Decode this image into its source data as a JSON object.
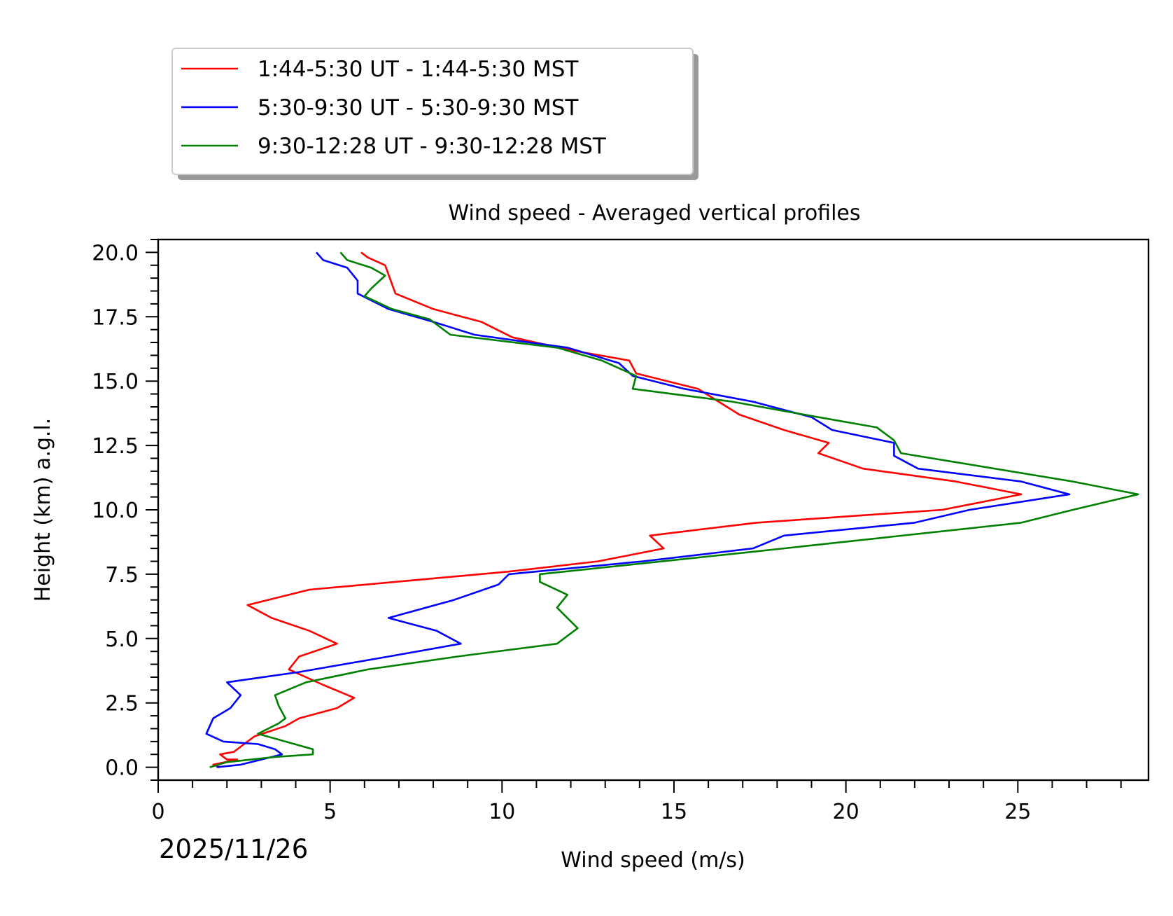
{
  "chart_data": {
    "type": "line",
    "title": "Wind speed - Averaged vertical profiles",
    "xlabel": "Wind speed (m/s)",
    "ylabel": "Height (km) a.g.l.",
    "date_label": "2025/11/26",
    "xlim": [
      0,
      28.8
    ],
    "ylim": [
      -0.5,
      20.5
    ],
    "x_major_ticks": [
      0,
      5,
      10,
      15,
      20,
      25
    ],
    "x_tick_labels": [
      "0",
      "5",
      "10",
      "15",
      "20",
      "25"
    ],
    "y_major_ticks": [
      0,
      2.5,
      5,
      7.5,
      10,
      12.5,
      15,
      17.5,
      20
    ],
    "y_tick_labels": [
      "0.0",
      "2.5",
      "5.0",
      "7.5",
      "10.0",
      "12.5",
      "15.0",
      "17.5",
      "20.0"
    ],
    "x_minor_step": 1,
    "y_minor_step": 0.5,
    "grid": false,
    "legend_position": "above-left",
    "series": [
      {
        "name": "1:44-5:30 UT - 1:44-5:30 MST",
        "color": "#ff0000",
        "points": [
          [
            5.9,
            20.0
          ],
          [
            6.1,
            19.8
          ],
          [
            6.6,
            19.5
          ],
          [
            6.9,
            18.4
          ],
          [
            8.0,
            17.8
          ],
          [
            9.4,
            17.3
          ],
          [
            10.3,
            16.7
          ],
          [
            12.0,
            16.2
          ],
          [
            13.7,
            15.8
          ],
          [
            13.9,
            15.3
          ],
          [
            15.7,
            14.7
          ],
          [
            16.3,
            14.2
          ],
          [
            16.9,
            13.7
          ],
          [
            18.2,
            13.1
          ],
          [
            19.5,
            12.6
          ],
          [
            19.2,
            12.2
          ],
          [
            20.5,
            11.6
          ],
          [
            23.2,
            11.1
          ],
          [
            25.1,
            10.6
          ],
          [
            22.8,
            10.0
          ],
          [
            17.4,
            9.5
          ],
          [
            14.3,
            9.0
          ],
          [
            14.7,
            8.5
          ],
          [
            12.8,
            8.0
          ],
          [
            10.2,
            7.6
          ],
          [
            4.4,
            6.9
          ],
          [
            2.6,
            6.3
          ],
          [
            3.3,
            5.8
          ],
          [
            4.4,
            5.3
          ],
          [
            5.2,
            4.8
          ],
          [
            4.1,
            4.3
          ],
          [
            3.8,
            3.8
          ],
          [
            4.8,
            3.2
          ],
          [
            5.7,
            2.7
          ],
          [
            5.2,
            2.3
          ],
          [
            4.1,
            1.9
          ],
          [
            3.7,
            1.6
          ],
          [
            2.8,
            1.2
          ],
          [
            2.5,
            0.9
          ],
          [
            2.2,
            0.6
          ],
          [
            1.8,
            0.5
          ],
          [
            2.0,
            0.3
          ],
          [
            2.3,
            0.3
          ],
          [
            1.6,
            0.1
          ],
          [
            1.8,
            0.0
          ]
        ]
      },
      {
        "name": "5:30-9:30 UT - 5:30-9:30 MST",
        "color": "#0000ff",
        "points": [
          [
            4.6,
            20.0
          ],
          [
            4.8,
            19.7
          ],
          [
            5.5,
            19.4
          ],
          [
            5.8,
            18.9
          ],
          [
            5.8,
            18.4
          ],
          [
            6.7,
            17.8
          ],
          [
            8.0,
            17.3
          ],
          [
            9.2,
            16.8
          ],
          [
            11.9,
            16.3
          ],
          [
            13.4,
            15.7
          ],
          [
            13.8,
            15.2
          ],
          [
            15.3,
            14.7
          ],
          [
            17.3,
            14.2
          ],
          [
            19.0,
            13.6
          ],
          [
            19.6,
            13.1
          ],
          [
            21.4,
            12.6
          ],
          [
            21.4,
            12.1
          ],
          [
            22.1,
            11.6
          ],
          [
            25.1,
            11.1
          ],
          [
            26.5,
            10.6
          ],
          [
            23.6,
            10.0
          ],
          [
            22.0,
            9.5
          ],
          [
            18.2,
            9.0
          ],
          [
            17.3,
            8.5
          ],
          [
            14.1,
            8.0
          ],
          [
            10.2,
            7.5
          ],
          [
            9.9,
            7.1
          ],
          [
            8.6,
            6.5
          ],
          [
            6.7,
            5.8
          ],
          [
            8.1,
            5.3
          ],
          [
            8.8,
            4.8
          ],
          [
            6.7,
            4.3
          ],
          [
            4.1,
            3.7
          ],
          [
            2.0,
            3.3
          ],
          [
            2.4,
            2.8
          ],
          [
            2.1,
            2.3
          ],
          [
            1.6,
            1.9
          ],
          [
            1.4,
            1.3
          ],
          [
            1.9,
            1.0
          ],
          [
            2.9,
            0.9
          ],
          [
            3.4,
            0.7
          ],
          [
            3.6,
            0.5
          ],
          [
            3.0,
            0.3
          ],
          [
            2.4,
            0.1
          ],
          [
            1.7,
            0.0
          ]
        ]
      },
      {
        "name": "9:30-12:28 UT - 9:30-12:28 MST",
        "color": "#008000",
        "points": [
          [
            5.3,
            20.0
          ],
          [
            5.5,
            19.7
          ],
          [
            6.2,
            19.4
          ],
          [
            6.6,
            19.1
          ],
          [
            6.2,
            18.6
          ],
          [
            6.0,
            18.3
          ],
          [
            6.8,
            17.8
          ],
          [
            7.9,
            17.4
          ],
          [
            8.5,
            16.8
          ],
          [
            11.6,
            16.3
          ],
          [
            12.9,
            15.8
          ],
          [
            13.9,
            15.2
          ],
          [
            13.8,
            14.7
          ],
          [
            16.7,
            14.2
          ],
          [
            19.2,
            13.6
          ],
          [
            20.9,
            13.2
          ],
          [
            21.4,
            12.7
          ],
          [
            21.6,
            12.2
          ],
          [
            26.6,
            11.1
          ],
          [
            28.5,
            10.6
          ],
          [
            26.6,
            10.0
          ],
          [
            25.1,
            9.5
          ],
          [
            17.5,
            8.4
          ],
          [
            11.1,
            7.5
          ],
          [
            11.1,
            7.2
          ],
          [
            11.9,
            6.7
          ],
          [
            11.6,
            6.2
          ],
          [
            12.2,
            5.4
          ],
          [
            11.6,
            4.8
          ],
          [
            8.7,
            4.3
          ],
          [
            6.1,
            3.8
          ],
          [
            4.3,
            3.3
          ],
          [
            3.4,
            2.8
          ],
          [
            3.5,
            2.4
          ],
          [
            3.7,
            1.9
          ],
          [
            3.5,
            1.7
          ],
          [
            2.9,
            1.3
          ],
          [
            4.5,
            0.7
          ],
          [
            4.5,
            0.5
          ],
          [
            3.4,
            0.4
          ],
          [
            2.0,
            0.2
          ],
          [
            1.5,
            0.0
          ]
        ]
      }
    ]
  }
}
